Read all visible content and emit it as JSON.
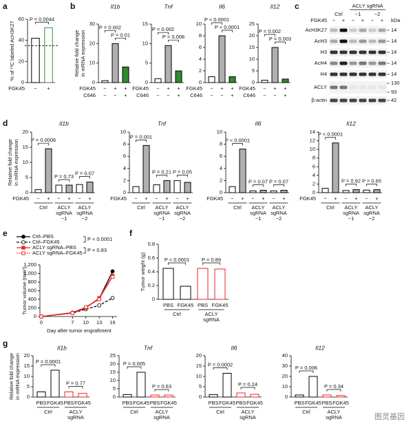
{
  "panels": [
    "a",
    "b",
    "c",
    "d",
    "e",
    "f",
    "g"
  ],
  "chart_data": [
    {
      "type": "bar",
      "ylabel": [
        "% of ¹³C labeled AcH3K27"
      ],
      "categories": [
        "−",
        "+"
      ],
      "xlabel": "FGK45",
      "values": [
        42,
        52
      ],
      "colors": [
        "#ffffff",
        "#ffffff"
      ],
      "edgecolors": [
        "#000000",
        "#2e8b2e"
      ],
      "ylim": [
        0,
        60
      ],
      "yticks": [
        0,
        20,
        40,
        60
      ],
      "hline": 35,
      "pvalues": [
        "P = 0.0044"
      ]
    },
    {
      "type": "bar",
      "title": "Il1b",
      "ylabel": [
        "Relative fold change",
        "in mRNA expression"
      ],
      "categories": [
        "−",
        "+",
        "+"
      ],
      "xlabel": "FGK45",
      "extra_row": {
        "name": "C646",
        "marks": [
          "−",
          "−",
          "+"
        ]
      },
      "values": [
        1,
        20,
        8
      ],
      "colors": [
        "#ffffff",
        "#b0b0b0",
        "#2e8b2e"
      ],
      "edgecolors": [
        "#000000",
        "#000000",
        "#000000"
      ],
      "ylim": [
        0,
        30
      ],
      "yticks": [
        0,
        10,
        20,
        30
      ],
      "pvalues": [
        "P = 0.002",
        "P = 0.01"
      ]
    },
    {
      "type": "bar",
      "title": "Tnf",
      "categories": [
        "−",
        "+",
        "+"
      ],
      "xlabel": "FGK45",
      "extra_row": {
        "name": "C646",
        "marks": [
          "−",
          "−",
          "+"
        ]
      },
      "values": [
        1,
        9.5,
        3
      ],
      "colors": [
        "#ffffff",
        "#b0b0b0",
        "#2e8b2e"
      ],
      "edgecolors": [
        "#000000",
        "#000000",
        "#000000"
      ],
      "ylim": [
        0,
        15
      ],
      "yticks": [
        0,
        5,
        10,
        15
      ],
      "pvalues": [
        "P = 0.002",
        "P = 0.008"
      ]
    },
    {
      "type": "bar",
      "title": "Il6",
      "categories": [
        "−",
        "+",
        "+"
      ],
      "xlabel": "FGK45",
      "extra_row": {
        "name": "C646",
        "marks": [
          "−",
          "−",
          "+"
        ]
      },
      "values": [
        1,
        8,
        1
      ],
      "colors": [
        "#ffffff",
        "#b0b0b0",
        "#2e8b2e"
      ],
      "edgecolors": [
        "#000000",
        "#000000",
        "#000000"
      ],
      "ylim": [
        0,
        10
      ],
      "yticks": [
        0,
        2,
        4,
        6,
        8,
        10
      ],
      "pvalues": [
        "P < 0.0001",
        "P < 0.0001"
      ]
    },
    {
      "type": "bar",
      "title": "Il12",
      "categories": [
        "−",
        "+",
        "+"
      ],
      "xlabel": "FGK45",
      "extra_row": {
        "name": "C646",
        "marks": [
          "−",
          "−",
          "+"
        ]
      },
      "values": [
        1,
        15,
        1.5
      ],
      "colors": [
        "#ffffff",
        "#b0b0b0",
        "#2e8b2e"
      ],
      "edgecolors": [
        "#000000",
        "#000000",
        "#000000"
      ],
      "ylim": [
        0,
        25
      ],
      "yticks": [
        0,
        5,
        10,
        15,
        20,
        25
      ],
      "pvalues": [
        "P = 0.002",
        "P = 0.003"
      ]
    },
    {
      "type": "bar",
      "title": "Il1b",
      "ylabel": [
        "Relative fold change",
        "in mRNA expression"
      ],
      "categories": [
        "−",
        "+",
        "−",
        "+",
        "−",
        "+"
      ],
      "xlabel": "FGK45",
      "groups": [
        [
          "Ctrl"
        ],
        [
          "ACLY",
          "sgRNA",
          "−1"
        ],
        [
          "ACLY",
          "sgRNA",
          "−2"
        ]
      ],
      "values": [
        1,
        14.5,
        2.5,
        2.5,
        2.7,
        3.5
      ],
      "colors": [
        "#ffffff",
        "#b0b0b0",
        "#ffffff",
        "#b0b0b0",
        "#ffffff",
        "#b0b0b0"
      ],
      "edgecolors": [
        "#000000",
        "#000000",
        "#000000",
        "#000000",
        "#000000",
        "#000000"
      ],
      "ylim": [
        0,
        20
      ],
      "yticks": [
        0,
        5,
        10,
        15,
        20
      ],
      "pvalues": [
        "P = 0.0006",
        "P = 0.73",
        "P = 0.07"
      ]
    },
    {
      "type": "bar",
      "title": "Tnf",
      "categories": [
        "−",
        "+",
        "−",
        "+",
        "−",
        "+"
      ],
      "xlabel": "FGK45",
      "groups": [
        [
          "Ctrl"
        ],
        [
          "ACLY",
          "sgRNA",
          "−1"
        ],
        [
          "ACLY",
          "sgRNA",
          "−2"
        ]
      ],
      "values": [
        1,
        7.8,
        1.3,
        2,
        2,
        1.7
      ],
      "colors": [
        "#ffffff",
        "#b0b0b0",
        "#ffffff",
        "#b0b0b0",
        "#ffffff",
        "#b0b0b0"
      ],
      "edgecolors": [
        "#000000",
        "#000000",
        "#000000",
        "#000000",
        "#000000",
        "#000000"
      ],
      "ylim": [
        0,
        10
      ],
      "yticks": [
        0,
        2,
        4,
        6,
        8,
        10
      ],
      "pvalues": [
        "P = 0.001",
        "P = 0.21",
        "P = 0.05"
      ]
    },
    {
      "type": "bar",
      "title": "Il6",
      "categories": [
        "−",
        "+",
        "−",
        "+",
        "−",
        "+"
      ],
      "xlabel": "FGK45",
      "groups": [
        [
          "Ctrl"
        ],
        [
          "ACLY",
          "sgRNA",
          "−1"
        ],
        [
          "ACLY",
          "sgRNA",
          "−2"
        ]
      ],
      "values": [
        1,
        7.2,
        0.3,
        0.4,
        0.3,
        0.4
      ],
      "colors": [
        "#ffffff",
        "#b0b0b0",
        "#ffffff",
        "#b0b0b0",
        "#ffffff",
        "#b0b0b0"
      ],
      "edgecolors": [
        "#000000",
        "#000000",
        "#000000",
        "#000000",
        "#000000",
        "#000000"
      ],
      "ylim": [
        0,
        10
      ],
      "yticks": [
        0,
        2,
        4,
        6,
        8,
        10
      ],
      "pvalues": [
        "P < 0.0001",
        "P = 0.07",
        "P = 0.07"
      ]
    },
    {
      "type": "bar",
      "title": "Il12",
      "categories": [
        "−",
        "+",
        "−",
        "+",
        "−",
        "+"
      ],
      "xlabel": "FGK45",
      "groups": [
        [
          "Ctrl"
        ],
        [
          "ACLY",
          "sgRNA",
          "−1"
        ],
        [
          "ACLY",
          "sgRNA",
          "−2"
        ]
      ],
      "values": [
        1,
        11.5,
        0.5,
        0.7,
        0.6,
        0.7
      ],
      "colors": [
        "#ffffff",
        "#b0b0b0",
        "#ffffff",
        "#b0b0b0",
        "#ffffff",
        "#b0b0b0"
      ],
      "edgecolors": [
        "#000000",
        "#000000",
        "#000000",
        "#000000",
        "#000000",
        "#000000"
      ],
      "ylim": [
        0,
        14
      ],
      "yticks": [
        0,
        2,
        4,
        6,
        8,
        10,
        12,
        14
      ],
      "pvalues": [
        "P < 0.0001",
        "P = 0.92",
        "P = 0.65"
      ]
    },
    {
      "type": "line",
      "ylabel": "Tumor volume (mm³)",
      "xlabel": "Day after tumor engraftment",
      "x": [
        0,
        7,
        10,
        13,
        16
      ],
      "xlim": [
        0,
        17
      ],
      "xticks": [
        0,
        7,
        10,
        13,
        16
      ],
      "ylim": [
        0,
        1200
      ],
      "yticks": [
        0,
        200,
        400,
        600,
        800,
        {
          "value": 1000,
          "label": "1,000"
        },
        {
          "value": 1200,
          "label": "1,200"
        }
      ],
      "series": [
        {
          "name": "Ctrl–PBS",
          "color": "#000000",
          "linestyle": "solid",
          "marker": "circle",
          "marker_filled": true,
          "values": [
            0,
            90,
            210,
            420,
            1050
          ]
        },
        {
          "name": "Ctrl–FGK45",
          "color": "#000000",
          "linestyle": "dashed",
          "marker": "circle",
          "marker_filled": false,
          "values": [
            0,
            80,
            170,
            260,
            430
          ]
        },
        {
          "name": "ACLY sgRNA–PBS",
          "color": "#e8231f",
          "linestyle": "solid",
          "marker": "square",
          "marker_filled": true,
          "values": [
            0,
            85,
            200,
            430,
            950
          ]
        },
        {
          "name": "ACLY sgRNA–FGK45",
          "color": "#e8231f",
          "linestyle": "dotted",
          "marker": "square",
          "marker_filled": false,
          "values": [
            0,
            80,
            220,
            400,
            920
          ]
        }
      ],
      "pvalues": [
        "P < 0.0001",
        "P = 0.83"
      ]
    },
    {
      "type": "bar",
      "ylabel": [
        "Tumor weight (g)"
      ],
      "categories": [
        "PBS",
        "FGK45",
        "PBS",
        "FGK45"
      ],
      "groups": [
        [
          "Ctrl"
        ],
        [
          "ACLY",
          "sgRNA"
        ]
      ],
      "values": [
        0.45,
        0.19,
        0.45,
        0.44
      ],
      "colors": [
        "#ffffff",
        "#ffffff",
        "#ffffff",
        "#ffffff"
      ],
      "edgecolors": [
        "#000000",
        "#000000",
        "#e8231f",
        "#e8231f"
      ],
      "ylim": [
        0,
        0.8
      ],
      "yticks": [
        0,
        0.2,
        0.4,
        0.6,
        0.8
      ],
      "pvalues": [
        "P < 0.0001",
        "P = 0.89"
      ]
    },
    {
      "type": "bar",
      "title": "Il1b",
      "ylabel": [
        "Relative fold change",
        "in mRNA expression"
      ],
      "categories": [
        "PBS",
        "FGK45",
        "PBS",
        "FGK45"
      ],
      "groups": [
        [
          "Ctrl"
        ],
        [
          "ACLY",
          "sgRNA"
        ]
      ],
      "values": [
        2.5,
        13,
        2.5,
        1.8
      ],
      "colors": [
        "#ffffff",
        "#ffffff",
        "#ffffff",
        "#ffffff"
      ],
      "edgecolors": [
        "#000000",
        "#000000",
        "#e8231f",
        "#e8231f"
      ],
      "ylim": [
        0,
        20
      ],
      "yticks": [
        0,
        5,
        10,
        15,
        20
      ],
      "pvalues": [
        "P = 0.0001",
        "P = 0.77"
      ]
    },
    {
      "type": "bar",
      "title": "Tnf",
      "categories": [
        "PBS",
        "FGK45",
        "PBS",
        "FGK45"
      ],
      "groups": [
        [
          "Ctrl"
        ],
        [
          "ACLY",
          "sgRNA"
        ]
      ],
      "values": [
        1.5,
        15,
        1.2,
        1.2
      ],
      "colors": [
        "#ffffff",
        "#ffffff",
        "#ffffff",
        "#ffffff"
      ],
      "edgecolors": [
        "#000000",
        "#000000",
        "#e8231f",
        "#e8231f"
      ],
      "ylim": [
        0,
        25
      ],
      "yticks": [
        0,
        5,
        10,
        15,
        20,
        25
      ],
      "pvalues": [
        "P = 0.005",
        "P = 0.63"
      ]
    },
    {
      "type": "bar",
      "title": "Il6",
      "categories": [
        "PBS",
        "FGK45",
        "PBS",
        "FGK45"
      ],
      "groups": [
        [
          "Ctrl"
        ],
        [
          "ACLY",
          "sgRNA"
        ]
      ],
      "values": [
        1.2,
        11.5,
        2,
        1.3
      ],
      "colors": [
        "#ffffff",
        "#ffffff",
        "#ffffff",
        "#ffffff"
      ],
      "edgecolors": [
        "#000000",
        "#000000",
        "#e8231f",
        "#e8231f"
      ],
      "ylim": [
        0,
        20
      ],
      "yticks": [
        0,
        5,
        10,
        15,
        20
      ],
      "pvalues": [
        "P = 0.0002",
        "P = 0.24"
      ]
    },
    {
      "type": "bar",
      "title": "Il12",
      "categories": [
        "PBS",
        "FGK45",
        "PBS",
        "FGK45"
      ],
      "groups": [
        [
          "Ctrl"
        ],
        [
          "ACLY",
          "sgRNA"
        ]
      ],
      "values": [
        2,
        20,
        2,
        1.5
      ],
      "colors": [
        "#ffffff",
        "#ffffff",
        "#ffffff",
        "#ffffff"
      ],
      "edgecolors": [
        "#000000",
        "#000000",
        "#e8231f",
        "#e8231f"
      ],
      "ylim": [
        0,
        40
      ],
      "yticks": [
        0,
        10,
        20,
        30,
        40
      ],
      "pvalues": [
        "P = 0.006",
        "P = 0.34"
      ]
    }
  ],
  "blot": {
    "group_label": "ACLY sgRNA",
    "lanes": [
      "Ctrl",
      "−1",
      "−2"
    ],
    "treatment": "FGK45",
    "marks": [
      "−",
      "+",
      "−",
      "+",
      "−",
      "+"
    ],
    "unit": "kDa",
    "rows": [
      {
        "label": "AcH3K27",
        "markers": [
          "14"
        ]
      },
      {
        "label": "AcH3",
        "markers": [
          "14"
        ]
      },
      {
        "label": "H3",
        "markers": [
          "14"
        ]
      },
      {
        "label": "AcH4",
        "markers": [
          "14"
        ]
      },
      {
        "label": "H4",
        "markers": [
          "14"
        ]
      },
      {
        "label": "ACLY",
        "markers": [
          "130",
          "93"
        ]
      },
      {
        "label": "β-actin",
        "markers": [
          "42"
        ]
      }
    ]
  },
  "watermark": "图灵基因"
}
